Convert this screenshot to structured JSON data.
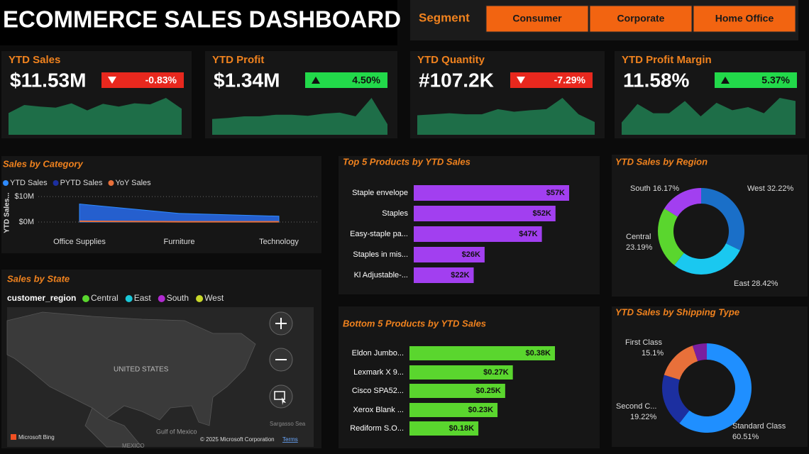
{
  "header": {
    "title": "ECOMMERCE SALES DASHBOARD",
    "segment_label": "Segment",
    "segments": [
      "Consumer",
      "Corporate",
      "Home Office"
    ]
  },
  "kpis": [
    {
      "title": "YTD Sales",
      "value": "$11.53M",
      "change": "-0.83%",
      "change_color": "#e8281e",
      "sparkline": [
        40,
        55,
        52,
        50,
        58,
        45,
        57,
        52,
        58,
        56,
        68,
        48
      ],
      "sparkline_color": "#1e6e48"
    },
    {
      "title": "YTD Profit",
      "value": "$1.34M",
      "change": "4.50%",
      "change_color": "#22d94a",
      "sparkline": [
        30,
        32,
        35,
        35,
        38,
        38,
        36,
        40,
        42,
        35,
        70,
        20
      ],
      "sparkline_color": "#1e6e48"
    },
    {
      "title": "YTD Quantity",
      "value": "#107.2K",
      "change": "-7.29%",
      "change_color": "#e8281e",
      "sparkline": [
        38,
        40,
        42,
        40,
        40,
        50,
        45,
        48,
        50,
        72,
        40,
        25
      ],
      "sparkline_color": "#1e6e48"
    },
    {
      "title": "YTD Profit Margin",
      "value": "11.58%",
      "change": "5.37%",
      "change_color": "#22d94a",
      "sparkline": [
        20,
        50,
        35,
        35,
        55,
        30,
        52,
        40,
        45,
        35,
        60,
        55
      ],
      "sparkline_color": "#1e6e48"
    }
  ],
  "map": {
    "title": "Sales by State",
    "legend_title": "customer_region",
    "legend": [
      {
        "name": "Central",
        "color": "#5ad62e"
      },
      {
        "name": "East",
        "color": "#1ac8d8"
      },
      {
        "name": "South",
        "color": "#b02ad0"
      },
      {
        "name": "West",
        "color": "#c8d82a"
      }
    ],
    "labels": [
      "UNITED STATES",
      "Gulf of Mexico",
      "Sargasso Sea",
      "MEXICO"
    ],
    "attribution": "Microsoft Bing",
    "copyright": "© 2025 Microsoft Corporation",
    "terms": "Terms"
  },
  "chart_data": [
    {
      "type": "area",
      "title": "Sales by Category",
      "y_label": "YTD Sales...",
      "categories": [
        "Office Supplies",
        "Furniture",
        "Technology"
      ],
      "series": [
        {
          "name": "YTD Sales",
          "color": "#2e8bff",
          "values": [
            7100000,
            3400000,
            2300000
          ]
        },
        {
          "name": "PYTD Sales",
          "color": "#1c2fa0",
          "values": [
            6800000,
            3300000,
            2200000
          ]
        },
        {
          "name": "YoY Sales",
          "color": "#e8703a",
          "values": [
            300000,
            100000,
            100000
          ]
        }
      ],
      "ylim": [
        0,
        12000000
      ],
      "yticks": [
        {
          "value": 0,
          "label": "$0M"
        },
        {
          "value": 10000000,
          "label": "$10M"
        }
      ],
      "grid": true
    },
    {
      "type": "hbar",
      "title": "Top 5 Products by YTD Sales",
      "categories": [
        "Staple envelope",
        "Staples",
        "Easy-staple pa...",
        "Staples in mis...",
        "Kl Adjustable-..."
      ],
      "values": [
        57000,
        52000,
        47000,
        26000,
        22000
      ],
      "value_labels": [
        "$57K",
        "$52K",
        "$47K",
        "$26K",
        "$22K"
      ],
      "color": "#a23ff0"
    },
    {
      "type": "hbar",
      "title": "Bottom 5 Products by YTD Sales",
      "categories": [
        "Eldon Jumbo...",
        "Lexmark X 9...",
        "Cisco SPA52...",
        "Xerox Blank ...",
        "Rediform S.O..."
      ],
      "values": [
        380,
        270,
        250,
        230,
        180
      ],
      "value_labels": [
        "$0.38K",
        "$0.27K",
        "$0.25K",
        "$0.23K",
        "$0.18K"
      ],
      "color": "#5ad62e"
    },
    {
      "type": "donut",
      "title": "YTD Sales by Region",
      "categories": [
        "West",
        "East",
        "Central",
        "South"
      ],
      "values": [
        32.22,
        28.42,
        23.19,
        16.17
      ],
      "value_labels": [
        "32.22%",
        "28.42%",
        "23.19%",
        "16.17%"
      ],
      "colors": [
        "#1a6fc8",
        "#1ac8f0",
        "#5ad62e",
        "#a23ff0"
      ]
    },
    {
      "type": "donut",
      "title": "YTD Sales by Shipping Type",
      "categories": [
        "Standard Class",
        "Second C...",
        "First Class",
        null
      ],
      "values": [
        60.51,
        19.22,
        15.1,
        5.17
      ],
      "value_labels": [
        "60.51%",
        "19.22%",
        "15.1%",
        null
      ],
      "colors": [
        "#1f8fff",
        "#1c2fa0",
        "#e8703a",
        "#7a1fa0"
      ]
    }
  ]
}
